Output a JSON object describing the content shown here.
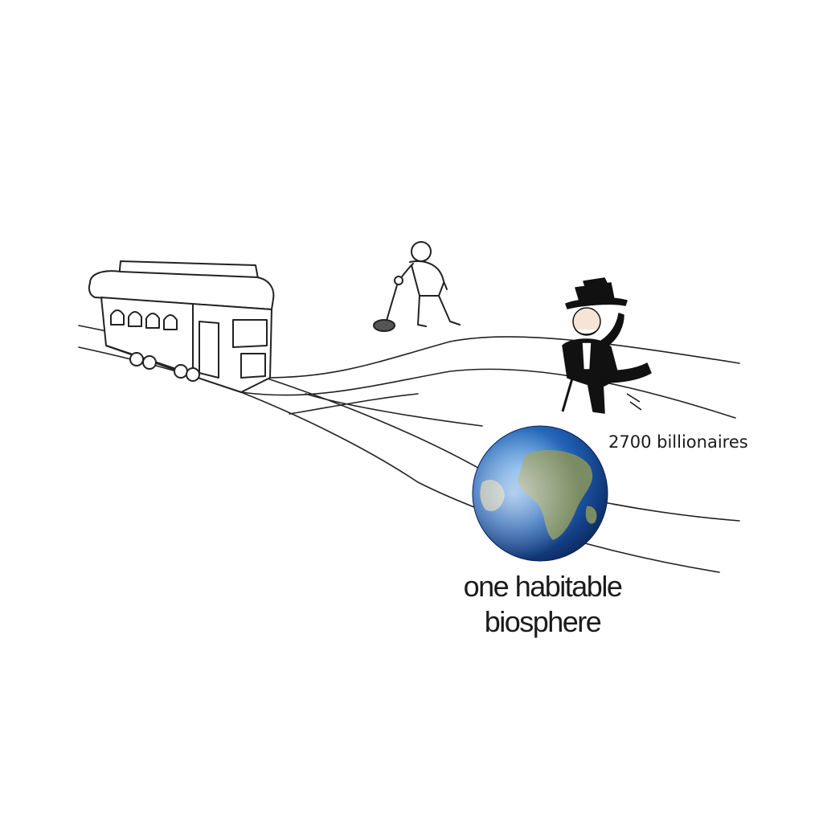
{
  "labels": {
    "billionaires": "2700 billionaires",
    "biosphere_line1": "one habitable",
    "biosphere_line2": "biosphere"
  },
  "colors": {
    "ink": "#1a1a1a",
    "ocean": "#1f5fb3",
    "land": "#7a8c62",
    "background": "#ffffff"
  },
  "icons": [
    "trolley-icon",
    "lever-person-icon",
    "monopoly-man-icon",
    "earth-globe-icon"
  ]
}
